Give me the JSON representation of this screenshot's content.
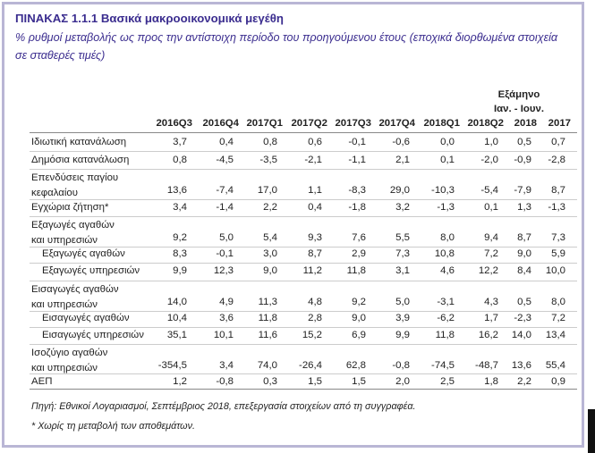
{
  "title": "ΠΙΝΑΚΑΣ 1.1.1 Βασικά μακροοικονομικά μεγέθη",
  "subtitle": "% ρυθμοί μεταβολής ως προς την αντίστοιχη περίοδο του προηγούμενου έτους (εποχικά διορθωμένα στοιχεία σε σταθερές τιμές)",
  "header_group": {
    "line1": "Εξάμηνο",
    "line2": "Ιαν. - Ιουν."
  },
  "columns": [
    "2016Q3",
    "2016Q4",
    "2017Q1",
    "2017Q2",
    "2017Q3",
    "2017Q4",
    "2018Q1",
    "2018Q2",
    "2018",
    "2017"
  ],
  "rows": [
    {
      "label": "Ιδιωτική κατανάλωση",
      "values": [
        "3,7",
        "0,4",
        "0,8",
        "0,6",
        "-0,1",
        "-0,6",
        "0,0",
        "1,0",
        "0,5",
        "0,7"
      ]
    },
    {
      "label": "Δημόσια κατανάλωση",
      "values": [
        "0,8",
        "-4,5",
        "-3,5",
        "-2,1",
        "-1,1",
        "2,1",
        "0,1",
        "-2,0",
        "-0,9",
        "-2,8"
      ]
    },
    {
      "label_line1": "Επενδύσεις παγίου",
      "label_line2": "κεφαλαίου",
      "values": [
        "13,6",
        "-7,4",
        "17,0",
        "1,1",
        "-8,3",
        "29,0",
        "-10,3",
        "-5,4",
        "-7,9",
        "8,7"
      ]
    },
    {
      "label": "Εγχώρια ζήτηση*",
      "values": [
        "3,4",
        "-1,4",
        "2,2",
        "0,4",
        "-1,8",
        "3,2",
        "-1,3",
        "0,1",
        "1,3",
        "-1,3"
      ]
    },
    {
      "label_line1": "Εξαγωγές αγαθών",
      "label_line2": "και υπηρεσιών",
      "values": [
        "9,2",
        "5,0",
        "5,4",
        "9,3",
        "7,6",
        "5,5",
        "8,0",
        "9,4",
        "8,7",
        "7,3"
      ]
    },
    {
      "label": "Εξαγωγές αγαθών",
      "values": [
        "8,3",
        "-0,1",
        "3,0",
        "8,7",
        "2,9",
        "7,3",
        "10,8",
        "7,2",
        "9,0",
        "5,9"
      ]
    },
    {
      "label": "Εξαγωγές υπηρεσιών",
      "values": [
        "9,9",
        "12,3",
        "9,0",
        "11,2",
        "11,8",
        "3,1",
        "4,6",
        "12,2",
        "8,4",
        "10,0"
      ]
    },
    {
      "label_line1": "Εισαγωγές αγαθών",
      "label_line2": "και υπηρεσιών",
      "values": [
        "14,0",
        "4,9",
        "11,3",
        "4,8",
        "9,2",
        "5,0",
        "-3,1",
        "4,3",
        "0,5",
        "8,0"
      ]
    },
    {
      "label": "Εισαγωγές αγαθών",
      "values": [
        "10,4",
        "3,6",
        "11,8",
        "2,8",
        "9,0",
        "3,9",
        "-6,2",
        "1,7",
        "-2,3",
        "7,2"
      ]
    },
    {
      "label": "Εισαγωγές υπηρεσιών",
      "values": [
        "35,1",
        "10,1",
        "11,6",
        "15,2",
        "6,9",
        "9,9",
        "11,8",
        "16,2",
        "14,0",
        "13,4"
      ]
    },
    {
      "label_line1": "Ισοζύγιο αγαθών",
      "label_line2": "και υπηρεσιών",
      "values": [
        "-354,5",
        "3,4",
        "74,0",
        "-26,4",
        "62,8",
        "-0,8",
        "-74,5",
        "-48,7",
        "13,6",
        "55,4"
      ]
    },
    {
      "label": "ΑΕΠ",
      "values": [
        "1,2",
        "-0,8",
        "0,3",
        "1,5",
        "1,5",
        "2,0",
        "2,5",
        "1,8",
        "2,2",
        "0,9"
      ]
    }
  ],
  "source": "Πηγή: Εθνικοί Λογαριασμοί, Σεπτέμβριος 2018, επεξεργασία στοιχείων από τη συγγραφέα.",
  "note": "* Χωρίς τη μεταβολή των αποθεμάτων."
}
